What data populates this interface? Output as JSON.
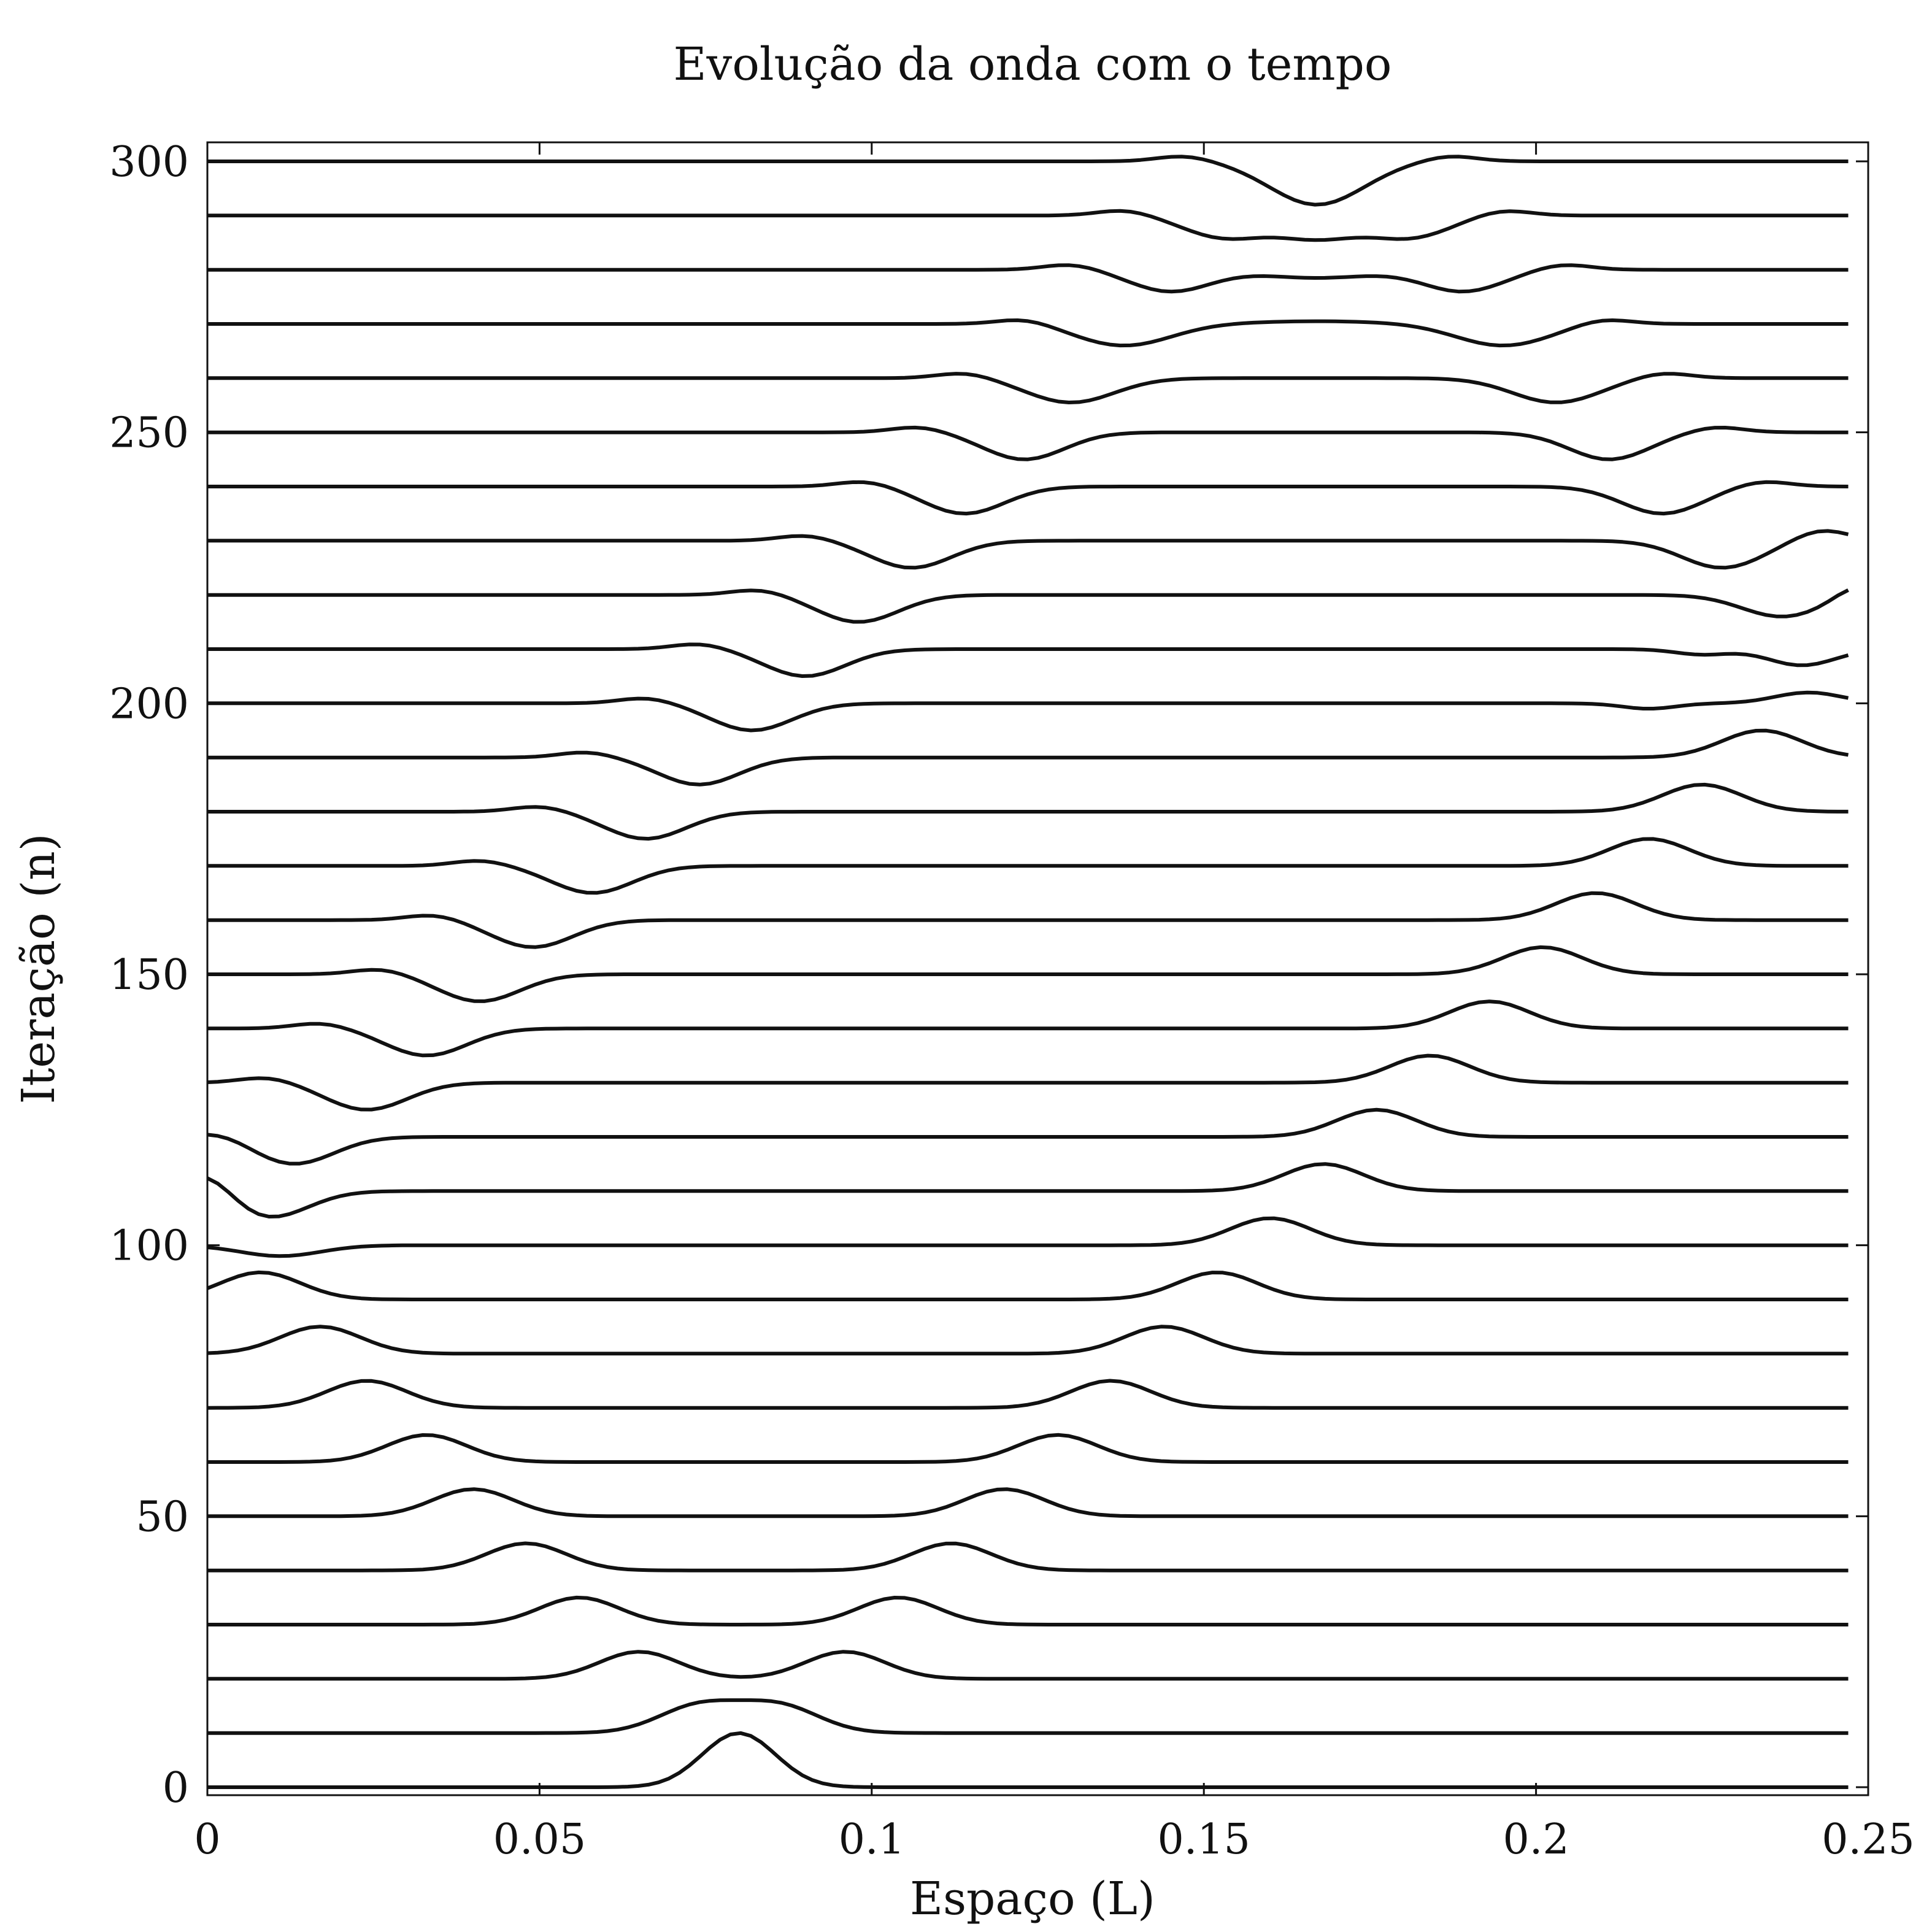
{
  "chart_data": {
    "type": "line",
    "title": "Evolução da onda com o tempo",
    "xlabel": "Espaço (L)",
    "ylabel": "Iteração (n)",
    "xlim": [
      0,
      0.25
    ],
    "ylim": [
      0,
      300
    ],
    "x_ticks": [
      0,
      0.05,
      0.1,
      0.15,
      0.2,
      0.25
    ],
    "x_tick_labels": [
      "0",
      "0.05",
      "0.1",
      "0.15",
      "0.2",
      "0.25"
    ],
    "y_ticks": [
      0,
      50,
      100,
      150,
      200,
      250,
      300
    ],
    "y_tick_labels": [
      "0",
      "50",
      "100",
      "150",
      "200",
      "250",
      "300"
    ],
    "grid": false,
    "legend": "none",
    "line_color": "#111111",
    "description_of_encoding": "waterfall",
    "x": [
      0,
      0.05,
      0.1,
      0.15,
      0.2,
      0.25
    ],
    "series": [
      {
        "baseline": 0,
        "peaks": [
          [
            0.08,
            10,
            0.0055
          ]
        ]
      },
      {
        "baseline": 10,
        "peaks": [
          [
            0.074,
            5,
            0.006
          ],
          [
            0.086,
            5,
            0.006
          ]
        ]
      },
      {
        "baseline": 20,
        "peaks": [
          [
            0.065,
            5,
            0.006
          ],
          [
            0.096,
            5,
            0.006
          ]
        ]
      },
      {
        "baseline": 30,
        "peaks": [
          [
            0.056,
            5,
            0.006
          ],
          [
            0.104,
            5,
            0.006
          ]
        ]
      },
      {
        "baseline": 40,
        "peaks": [
          [
            0.048,
            5,
            0.006
          ],
          [
            0.112,
            5,
            0.006
          ]
        ]
      },
      {
        "baseline": 50,
        "peaks": [
          [
            0.04,
            5,
            0.006
          ],
          [
            0.12,
            5,
            0.006
          ]
        ]
      },
      {
        "baseline": 60,
        "peaks": [
          [
            0.033,
            5,
            0.006
          ],
          [
            0.128,
            5,
            0.006
          ]
        ]
      },
      {
        "baseline": 70,
        "peaks": [
          [
            0.024,
            5,
            0.006
          ],
          [
            0.136,
            5,
            0.006
          ]
        ]
      },
      {
        "baseline": 80,
        "peaks": [
          [
            0.017,
            5,
            0.006
          ],
          [
            0.144,
            5,
            0.006
          ]
        ]
      },
      {
        "baseline": 90,
        "peaks": [
          [
            0.008,
            5,
            0.006
          ],
          [
            0.152,
            5,
            0.006
          ]
        ]
      },
      {
        "baseline": 100,
        "peaks": [
          [
            0.011,
            -2,
            0.006
          ],
          [
            0.16,
            5,
            0.006
          ]
        ]
      },
      {
        "baseline": 110,
        "peaks": [
          [
            0.0,
            4,
            0.004
          ],
          [
            0.009,
            -5,
            0.006
          ],
          [
            0.168,
            5,
            0.006
          ]
        ]
      },
      {
        "baseline": 120,
        "peaks": [
          [
            0.002,
            1,
            0.004
          ],
          [
            0.013,
            -5,
            0.006
          ],
          [
            0.176,
            5,
            0.006
          ]
        ]
      },
      {
        "baseline": 130,
        "peaks": [
          [
            0.009,
            1,
            0.004
          ],
          [
            0.024,
            -5,
            0.006
          ],
          [
            0.184,
            5,
            0.006
          ]
        ]
      },
      {
        "baseline": 140,
        "peaks": [
          [
            0.017,
            1,
            0.004
          ],
          [
            0.033,
            -5,
            0.006
          ],
          [
            0.193,
            5,
            0.006
          ]
        ]
      },
      {
        "baseline": 150,
        "peaks": [
          [
            0.026,
            1,
            0.004
          ],
          [
            0.041,
            -5,
            0.006
          ],
          [
            0.201,
            5,
            0.006
          ]
        ]
      },
      {
        "baseline": 160,
        "peaks": [
          [
            0.034,
            1,
            0.004
          ],
          [
            0.049,
            -5,
            0.006
          ],
          [
            0.209,
            5,
            0.006
          ]
        ]
      },
      {
        "baseline": 170,
        "peaks": [
          [
            0.041,
            1,
            0.004
          ],
          [
            0.058,
            -5,
            0.006
          ],
          [
            0.217,
            5,
            0.006
          ]
        ]
      },
      {
        "baseline": 180,
        "peaks": [
          [
            0.05,
            1,
            0.004
          ],
          [
            0.066,
            -5,
            0.006
          ],
          [
            0.225,
            5,
            0.006
          ]
        ]
      },
      {
        "baseline": 190,
        "peaks": [
          [
            0.057,
            1,
            0.004
          ],
          [
            0.074,
            -5,
            0.006
          ],
          [
            0.234,
            5,
            0.006
          ]
        ]
      },
      {
        "baseline": 200,
        "peaks": [
          [
            0.066,
            1,
            0.004
          ],
          [
            0.082,
            -5,
            0.006
          ],
          [
            0.217,
            -1,
            0.004
          ],
          [
            0.241,
            2,
            0.005
          ]
        ]
      },
      {
        "baseline": 210,
        "peaks": [
          [
            0.074,
            1,
            0.004
          ],
          [
            0.09,
            -5,
            0.006
          ],
          [
            0.225,
            -1,
            0.004
          ],
          [
            0.24,
            -3,
            0.005
          ]
        ]
      },
      {
        "baseline": 220,
        "peaks": [
          [
            0.083,
            1,
            0.004
          ],
          [
            0.098,
            -5,
            0.006
          ],
          [
            0.237,
            -4,
            0.006
          ],
          [
            0.248,
            2,
            0.003
          ]
        ]
      },
      {
        "baseline": 230,
        "peaks": [
          [
            0.09,
            1,
            0.004
          ],
          [
            0.106,
            -5,
            0.006
          ],
          [
            0.228,
            -5,
            0.006
          ],
          [
            0.243,
            2,
            0.004
          ]
        ]
      },
      {
        "baseline": 240,
        "peaks": [
          [
            0.099,
            1,
            0.004
          ],
          [
            0.114,
            -5,
            0.006
          ],
          [
            0.219,
            -5,
            0.006
          ],
          [
            0.234,
            1,
            0.004
          ]
        ]
      },
      {
        "baseline": 250,
        "peaks": [
          [
            0.107,
            1,
            0.004
          ],
          [
            0.123,
            -5,
            0.006
          ],
          [
            0.211,
            -5,
            0.006
          ],
          [
            0.227,
            1,
            0.004
          ]
        ]
      },
      {
        "baseline": 260,
        "peaks": [
          [
            0.114,
            1,
            0.004
          ],
          [
            0.13,
            -4.5,
            0.0065
          ],
          [
            0.203,
            -4.5,
            0.0065
          ],
          [
            0.219,
            1,
            0.004
          ]
        ]
      },
      {
        "baseline": 270,
        "peaks": [
          [
            0.123,
            1,
            0.004
          ],
          [
            0.138,
            -4,
            0.007
          ],
          [
            0.167,
            0.5,
            0.01
          ],
          [
            0.195,
            -4,
            0.007
          ],
          [
            0.21,
            1,
            0.004
          ]
        ]
      },
      {
        "baseline": 280,
        "peaks": [
          [
            0.13,
            1,
            0.004
          ],
          [
            0.145,
            -4,
            0.006
          ],
          [
            0.167,
            -1.5,
            0.008
          ],
          [
            0.189,
            -4,
            0.006
          ],
          [
            0.204,
            1,
            0.004
          ]
        ]
      },
      {
        "baseline": 290,
        "peaks": [
          [
            0.138,
            1,
            0.004
          ],
          [
            0.153,
            -4,
            0.006
          ],
          [
            0.167,
            -4,
            0.006
          ],
          [
            0.181,
            -4,
            0.006
          ],
          [
            0.195,
            1,
            0.004
          ]
        ]
      },
      {
        "baseline": 300,
        "peaks": [
          [
            0.147,
            1,
            0.004
          ],
          [
            0.167,
            -8,
            0.007
          ],
          [
            0.187,
            1,
            0.004
          ]
        ]
      }
    ]
  }
}
